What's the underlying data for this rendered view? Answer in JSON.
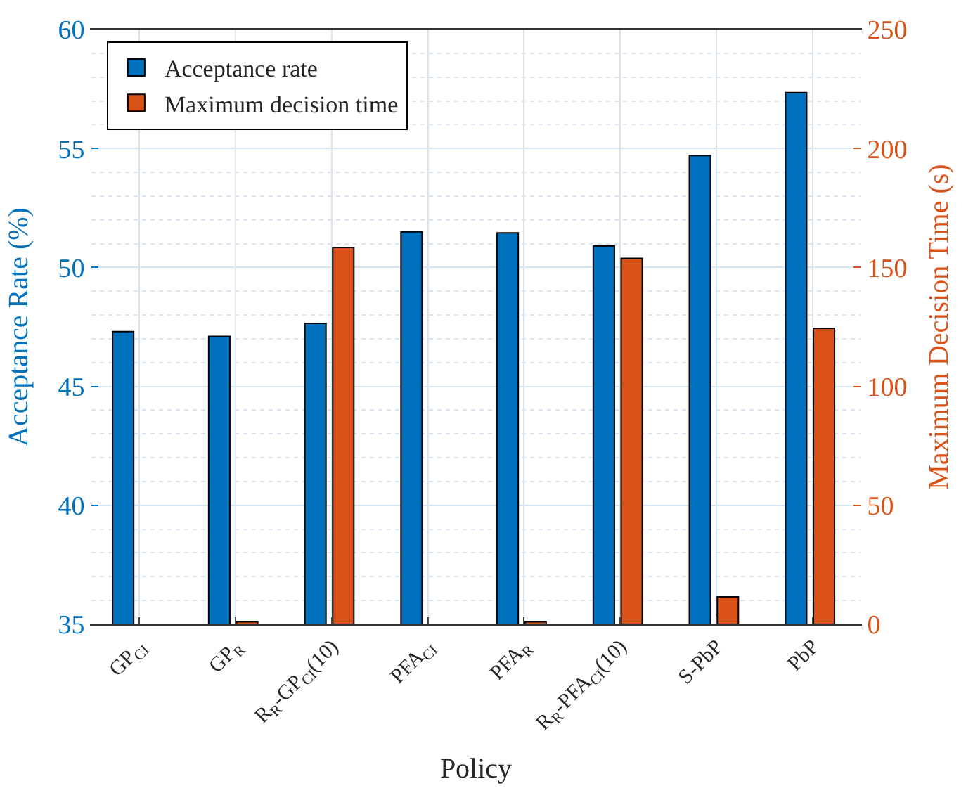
{
  "chart_data": {
    "type": "bar",
    "xlabel": "Policy",
    "ylabel": "Acceptance Rate (%)",
    "y2label": "Maximum Decision Time (s)",
    "categories": [
      "GP$_{CI}$",
      "GP$_{R}$",
      "R$_{R}$-GP$_{CI}$(10)",
      "PFA$_{CI}$",
      "PFA$_{R}$",
      "R$_{R}$-PFA$_{CI}$(10)",
      "S-PbP",
      "PbP"
    ],
    "series": [
      {
        "name": "Acceptance rate",
        "color": "#0072bd",
        "values": [
          47.3,
          47.1,
          47.65,
          51.5,
          51.45,
          50.9,
          54.7,
          57.35
        ]
      },
      {
        "name": "Maximum decision time",
        "color": "#d95319",
        "axis": "y2",
        "values": [
          null,
          1,
          158.4,
          null,
          1,
          153.8,
          11.5,
          124.4
        ]
      }
    ],
    "ylim": [
      35,
      60
    ],
    "yticks": [
      35,
      40,
      45,
      50,
      55,
      60
    ],
    "y2lim": [
      0,
      250
    ],
    "y2ticks": [
      0,
      50,
      100,
      150,
      200,
      250
    ],
    "grid": true,
    "legend": "top left"
  }
}
